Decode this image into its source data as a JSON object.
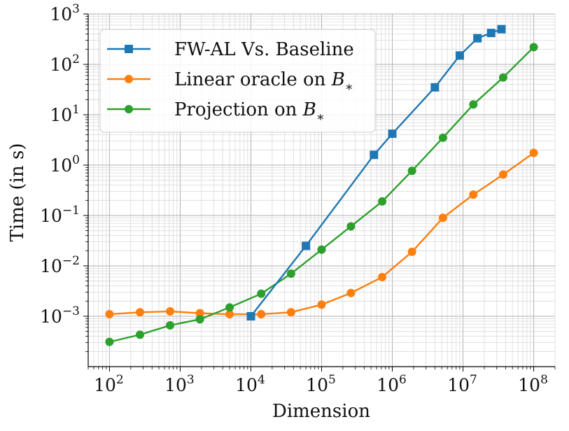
{
  "chart_data": {
    "type": "line",
    "xscale": "log",
    "yscale": "log",
    "xlabel": "Dimension",
    "ylabel": "Time (in s)",
    "xlim": [
      50,
      200000000
    ],
    "ylim": [
      0.0001,
      1000
    ],
    "grid": true,
    "legend_position": "top-left",
    "x_ticks": [
      {
        "value": 100,
        "base": "10",
        "exp": "2"
      },
      {
        "value": 1000,
        "base": "10",
        "exp": "3"
      },
      {
        "value": 10000,
        "base": "10",
        "exp": "4"
      },
      {
        "value": 100000,
        "base": "10",
        "exp": "5"
      },
      {
        "value": 1000000,
        "base": "10",
        "exp": "6"
      },
      {
        "value": 10000000,
        "base": "10",
        "exp": "7"
      },
      {
        "value": 100000000,
        "base": "10",
        "exp": "8"
      }
    ],
    "y_ticks": [
      {
        "value": 0.001,
        "base": "10",
        "exp": "−3"
      },
      {
        "value": 0.01,
        "base": "10",
        "exp": "−2"
      },
      {
        "value": 0.1,
        "base": "10",
        "exp": "−1"
      },
      {
        "value": 1,
        "base": "10",
        "exp": "0"
      },
      {
        "value": 10,
        "base": "10",
        "exp": "1"
      },
      {
        "value": 100,
        "base": "10",
        "exp": "2"
      },
      {
        "value": 1000,
        "base": "10",
        "exp": "3"
      }
    ],
    "series": [
      {
        "name": "FW-AL Vs. Baseline",
        "legend_main": "FW-AL Vs. Baseline",
        "legend_math": "",
        "legend_sub": "",
        "color": "#1f77b4",
        "marker": "square",
        "x": [
          10000,
          60000,
          550000,
          1000000,
          4000000,
          9000000,
          16000000,
          25000000,
          35000000
        ],
        "y": [
          0.001,
          0.025,
          1.6,
          4.2,
          35,
          150,
          330,
          420,
          500
        ]
      },
      {
        "name": "Linear oracle on B*",
        "legend_main": "Linear oracle on ",
        "legend_math": "B",
        "legend_sub": "∗",
        "color": "#ff7f0e",
        "marker": "circle",
        "x": [
          100,
          270,
          720,
          1900,
          5000,
          14000,
          37000,
          100000,
          260000,
          720000,
          1900000,
          5200000,
          14000000,
          37000000,
          100000000
        ],
        "y": [
          0.0011,
          0.0012,
          0.00125,
          0.00115,
          0.0011,
          0.0011,
          0.0012,
          0.0017,
          0.0029,
          0.006,
          0.019,
          0.09,
          0.26,
          0.65,
          1.75
        ]
      },
      {
        "name": "Projection on B*",
        "legend_main": "Projection on ",
        "legend_math": "B",
        "legend_sub": "∗",
        "color": "#2ca02c",
        "marker": "circle",
        "x": [
          100,
          270,
          720,
          1900,
          5000,
          14000,
          37000,
          100000,
          260000,
          720000,
          1900000,
          5200000,
          14000000,
          37000000,
          100000000
        ],
        "y": [
          0.00031,
          0.00043,
          0.00066,
          0.00087,
          0.0015,
          0.0028,
          0.007,
          0.021,
          0.061,
          0.19,
          0.77,
          3.5,
          16,
          55,
          220
        ]
      }
    ]
  }
}
